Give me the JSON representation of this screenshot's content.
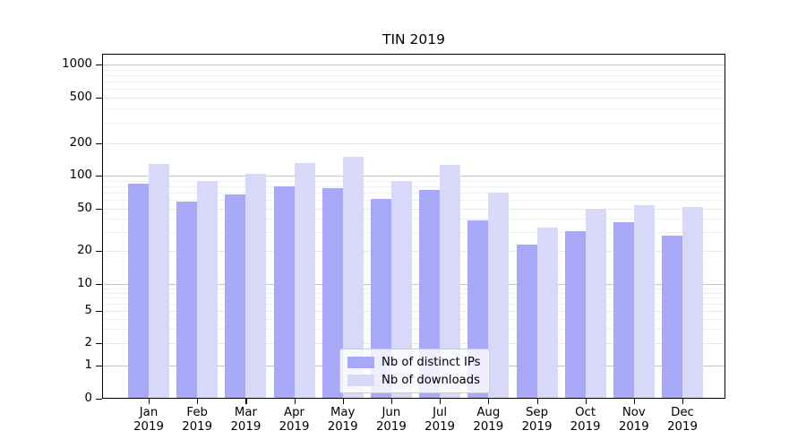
{
  "chart_data": {
    "type": "bar",
    "title": "TIN 2019",
    "y_scale": "symlog",
    "categories": [
      "Jan",
      "Feb",
      "Mar",
      "Apr",
      "May",
      "Jun",
      "Jul",
      "Aug",
      "Sep",
      "Oct",
      "Nov",
      "Dec"
    ],
    "category_year": "2019",
    "series": [
      {
        "name": "Nb of distinct IPs",
        "color": "#a8a8f8",
        "values": [
          84,
          58,
          68,
          80,
          77,
          61,
          74,
          39,
          23,
          31,
          37,
          28
        ]
      },
      {
        "name": "Nb of downloads",
        "color": "#d8d8f8",
        "values": [
          128,
          90,
          104,
          131,
          150,
          90,
          127,
          70,
          33,
          50,
          54,
          52
        ]
      }
    ],
    "y_ticks": [
      0,
      1,
      2,
      5,
      10,
      20,
      50,
      100,
      200,
      500,
      1000
    ],
    "y_minor_ticks": [
      3,
      4,
      6,
      7,
      8,
      9,
      30,
      40,
      60,
      70,
      80,
      90,
      300,
      400,
      600,
      700,
      800,
      900
    ],
    "ylim": [
      0,
      1250
    ],
    "xlabel": "",
    "ylabel": "",
    "grid": true,
    "legend_position": "lower center"
  },
  "colors": {
    "bar_distinct_ips": "#a8a8f8",
    "bar_downloads": "#d8d8f8",
    "grid_decade": "#c4c4c4",
    "grid_light": "#e9e9e9",
    "grid_minor": "#efefef",
    "axis": "#000000",
    "background": "#ffffff",
    "legend_border": "#cccccc"
  }
}
